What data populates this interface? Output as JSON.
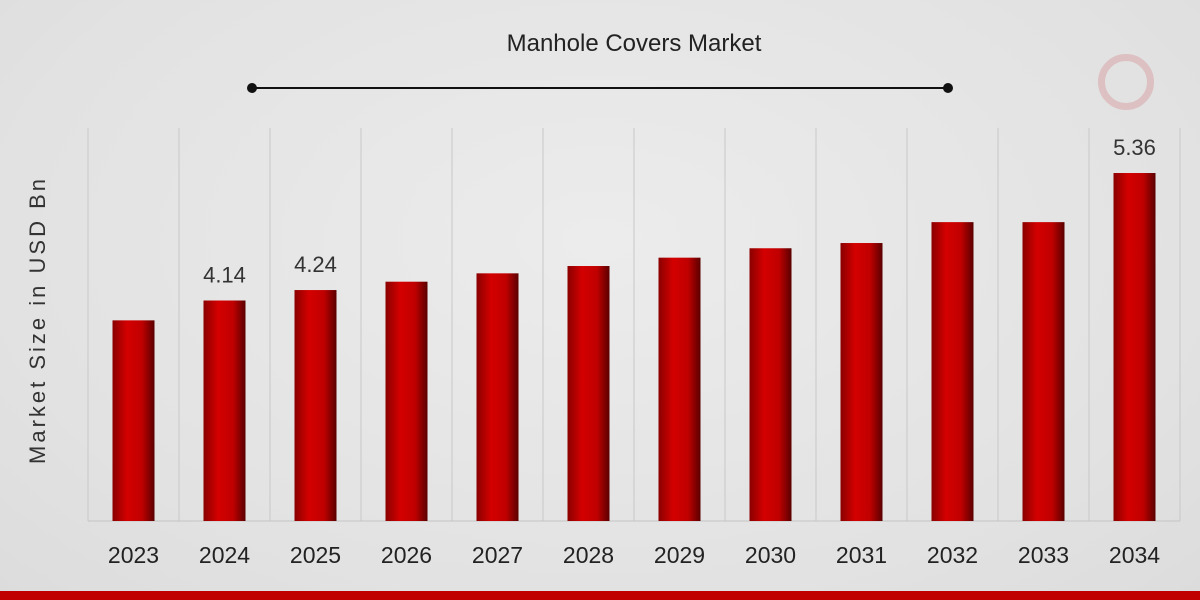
{
  "chart_data": {
    "type": "bar",
    "title": "Manhole Covers Market",
    "xlabel": "",
    "ylabel": "Market Size in USD Bn",
    "categories": [
      "2023",
      "2024",
      "2025",
      "2026",
      "2027",
      "2028",
      "2029",
      "2030",
      "2031",
      "2032",
      "2033",
      "2034"
    ],
    "values": [
      3.95,
      4.14,
      4.24,
      4.32,
      4.4,
      4.47,
      4.55,
      4.64,
      4.69,
      4.89,
      4.89,
      5.36
    ],
    "data_labels": {
      "2024": "4.14",
      "2025": "4.24",
      "2034": "5.36"
    },
    "grid": "vertical",
    "bar_color": "#c00000",
    "accent_color": "#c00000"
  }
}
